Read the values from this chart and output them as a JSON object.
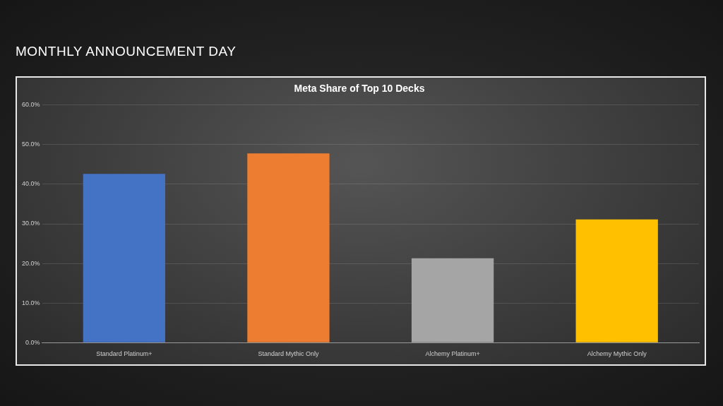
{
  "chart_data": {
    "type": "bar",
    "title": "Meta Share of Top 10 Decks",
    "subtitle": "MONTHLY ANNOUNCEMENT DAY",
    "categories": [
      "Standard Platinum+",
      "Standard Mythic Only",
      "Alchemy Platinum+",
      "Alchemy Mythic Only"
    ],
    "values": [
      42.6,
      47.8,
      21.3,
      31.1
    ],
    "colors": [
      "#4472c4",
      "#ed7d31",
      "#a5a5a5",
      "#ffc000"
    ],
    "ylim": [
      0,
      60
    ],
    "yticks": [
      {
        "value": 0,
        "label": "0.0%"
      },
      {
        "value": 10,
        "label": "10.0%"
      },
      {
        "value": 20,
        "label": "20.0%"
      },
      {
        "value": 30,
        "label": "30.0%"
      },
      {
        "value": 40,
        "label": "40.0%"
      },
      {
        "value": 50,
        "label": "50.0%"
      },
      {
        "value": 60,
        "label": "60.0%"
      }
    ],
    "grid": "y",
    "legend": false
  }
}
